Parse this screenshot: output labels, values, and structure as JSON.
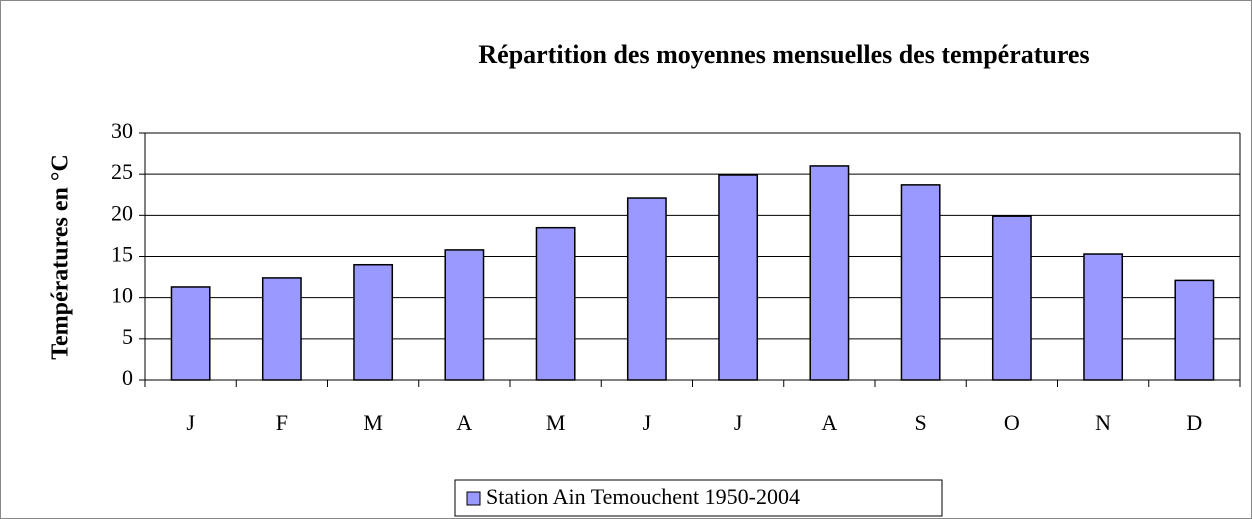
{
  "chart_data": {
    "type": "bar",
    "title": "Répartition des moyennes mensuelles  des températures",
    "y_label": "Températures en °C",
    "categories": [
      "J",
      "F",
      "M",
      "A",
      "M",
      "J",
      "J",
      "A",
      "S",
      "O",
      "N",
      "D"
    ],
    "series": [
      {
        "name": "Station Ain Temouchent 1950-2004",
        "color": "#9999ff",
        "values": [
          11.3,
          12.4,
          14,
          15.8,
          18.5,
          22.1,
          24.9,
          26,
          23.7,
          19.9,
          15.3,
          12.1
        ]
      }
    ],
    "ylim": [
      0,
      30
    ],
    "yticks": [
      0,
      5,
      10,
      15,
      20,
      25,
      30
    ],
    "grid": true,
    "legend": "bottom"
  }
}
